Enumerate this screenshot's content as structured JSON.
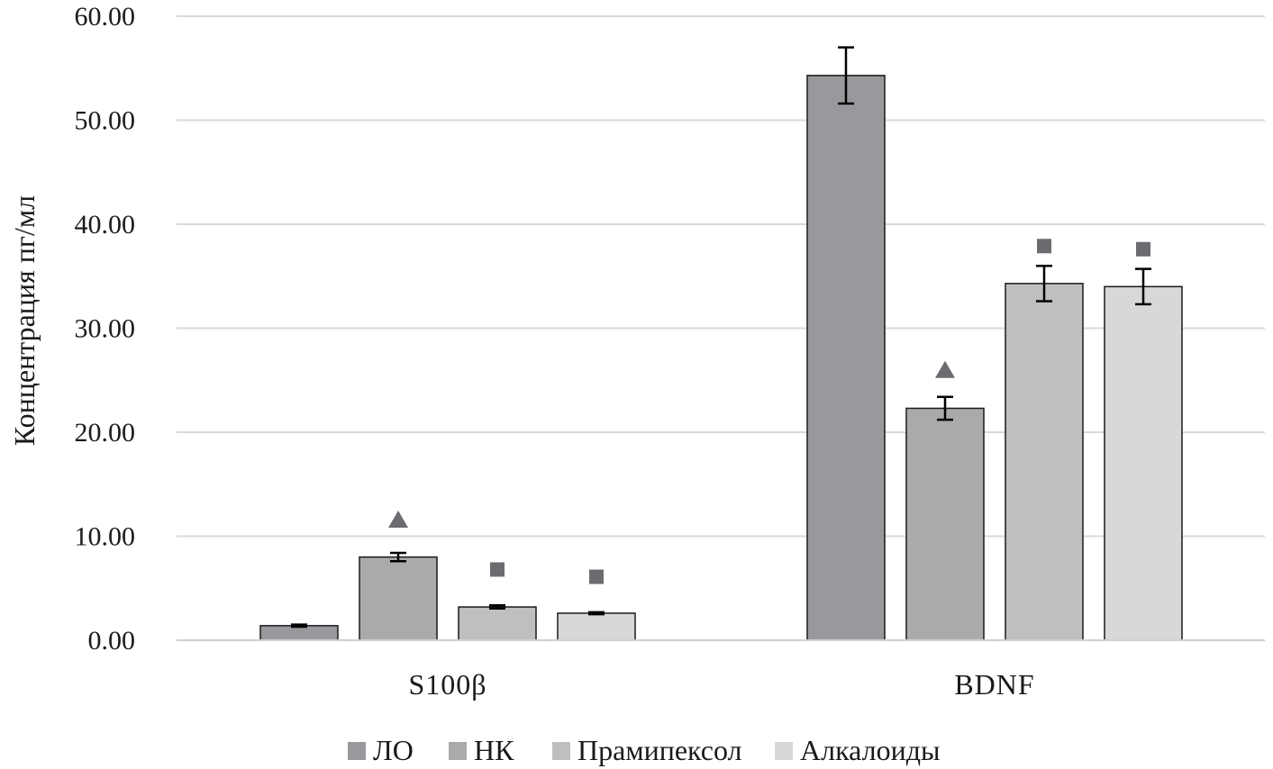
{
  "chart_data": {
    "type": "bar",
    "ylabel": "Концентрация пг/мл",
    "xlabel": "",
    "ylim": [
      0,
      60
    ],
    "yticks": [
      "0.00",
      "10.00",
      "20.00",
      "30.00",
      "40.00",
      "50.00",
      "60.00"
    ],
    "grid": true,
    "legend_position": "bottom",
    "categories": [
      "S100β",
      "BDNF"
    ],
    "series": [
      {
        "name": "ЛО",
        "color": "#98999c",
        "values": [
          1.4,
          54.3
        ],
        "errors": [
          0.1,
          2.7
        ]
      },
      {
        "name": "НК",
        "color": "#a9aaac",
        "values": [
          8.0,
          22.3
        ],
        "errors": [
          0.4,
          1.1
        ]
      },
      {
        "name": "Прамипексол",
        "color": "#bfbfbf",
        "values": [
          3.2,
          34.3
        ],
        "errors": [
          0.15,
          1.7
        ]
      },
      {
        "name": "Алкалоиды",
        "color": "#d8d8d9",
        "values": [
          2.6,
          34.0
        ],
        "errors": [
          0.1,
          1.7
        ]
      }
    ],
    "markers": [
      {
        "category": "S100β",
        "series": "НК",
        "symbol": "triangle",
        "value": 11.6
      },
      {
        "category": "S100β",
        "series": "Прамипексол",
        "symbol": "square",
        "value": 6.8
      },
      {
        "category": "S100β",
        "series": "Алкалоиды",
        "symbol": "square",
        "value": 6.1
      },
      {
        "category": "BDNF",
        "series": "НК",
        "symbol": "triangle",
        "value": 26.0
      },
      {
        "category": "BDNF",
        "series": "Прамипексол",
        "symbol": "square",
        "value": 37.9
      },
      {
        "category": "BDNF",
        "series": "Алкалоиды",
        "symbol": "square",
        "value": 37.6
      }
    ],
    "marker_color": "#6b6c6f"
  }
}
